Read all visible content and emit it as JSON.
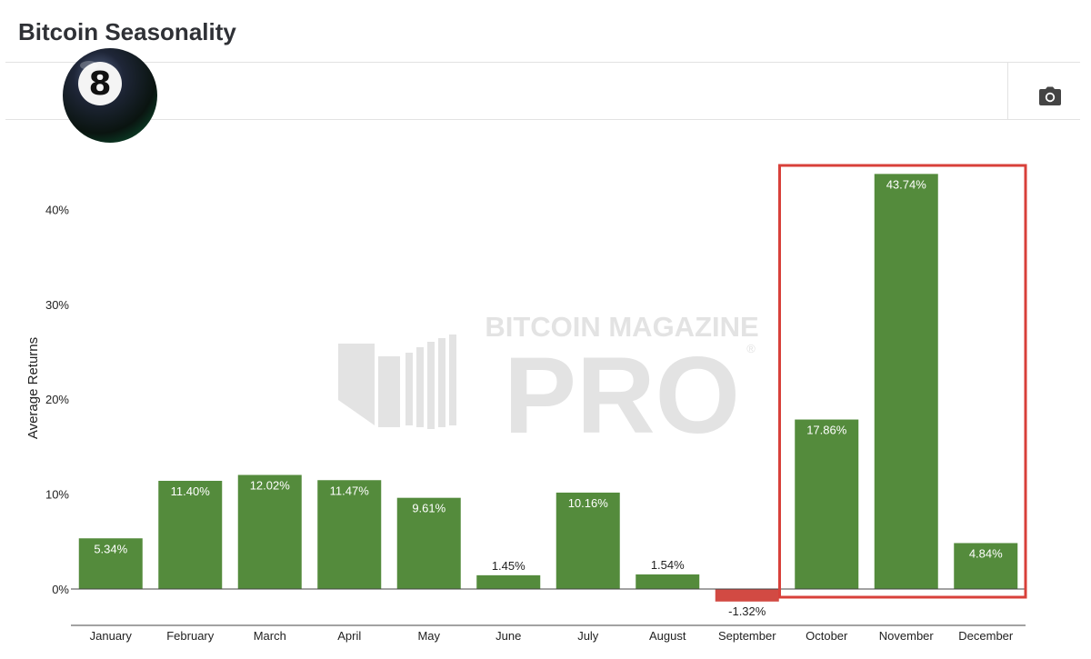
{
  "page": {
    "title": "Bitcoin Seasonality"
  },
  "toolbar": {
    "camera_icon": "camera-icon",
    "avatar_icon": "eight-ball-icon"
  },
  "watermark": {
    "line1": "BITCOIN MAGAZINE",
    "line2": "PRO",
    "registered": "®"
  },
  "colors": {
    "positive": "#548b3c",
    "negative": "#d24a43",
    "highlight_box": "#d8403a"
  },
  "chart_data": {
    "type": "bar",
    "title": "",
    "xlabel": "",
    "ylabel": "Average Returns",
    "categories": [
      "January",
      "February",
      "March",
      "April",
      "May",
      "June",
      "July",
      "August",
      "September",
      "October",
      "November",
      "December"
    ],
    "values": [
      5.34,
      11.4,
      12.02,
      11.47,
      9.61,
      1.45,
      10.16,
      1.54,
      -1.32,
      17.86,
      43.74,
      4.84
    ],
    "data_labels": [
      "5.34%",
      "11.40%",
      "12.02%",
      "11.47%",
      "9.61%",
      "1.45%",
      "10.16%",
      "1.54%",
      "-1.32%",
      "17.86%",
      "43.74%",
      "4.84%"
    ],
    "yticks": [
      0,
      10,
      20,
      30,
      40
    ],
    "ytick_labels": [
      "0%",
      "10%",
      "20%",
      "30%",
      "40%"
    ],
    "highlighted_categories": [
      "October",
      "November",
      "December"
    ],
    "grid": false,
    "legend": "none"
  }
}
